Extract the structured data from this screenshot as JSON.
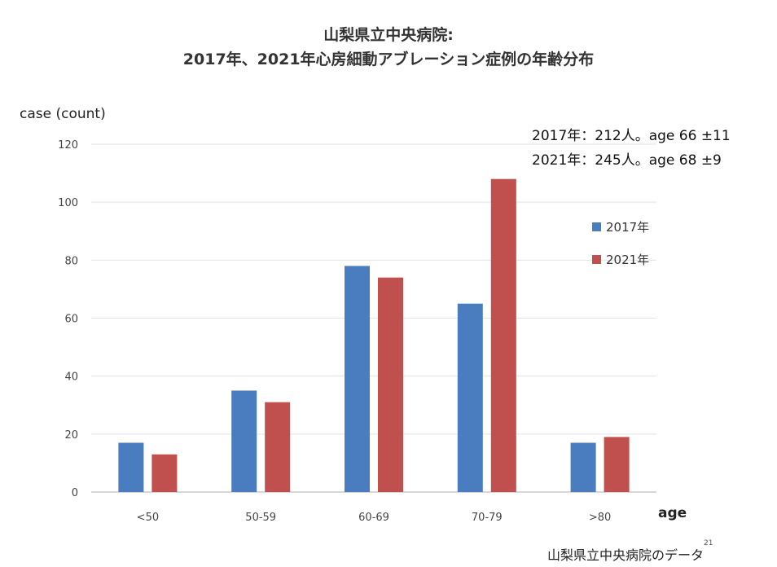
{
  "chart_data": {
    "type": "bar",
    "title": "山梨県立中央病院:",
    "subtitle": "2017年、2021年心房細動アブレーション症例の年齢分布",
    "ylabel": "case (count)",
    "xlabel": "age",
    "categories": [
      "<50",
      "50-59",
      "60-69",
      "70-79",
      ">80"
    ],
    "series": [
      {
        "name": "2017年",
        "color": "#4a7dbf",
        "values": [
          17,
          35,
          78,
          65,
          17
        ]
      },
      {
        "name": "2021年",
        "color": "#c0504d",
        "values": [
          13,
          31,
          74,
          108,
          19
        ]
      }
    ],
    "ylim": [
      0,
      120
    ],
    "yticks": [
      0,
      20,
      40,
      60,
      80,
      100,
      120
    ],
    "grid": true,
    "legend_position": "right",
    "annotations": [
      "2017年：212人。age 66 ±11",
      "2021年：245人。age 68 ±9"
    ]
  },
  "footer": {
    "source": "山梨県立中央病院のデータ",
    "page_number": "21"
  }
}
